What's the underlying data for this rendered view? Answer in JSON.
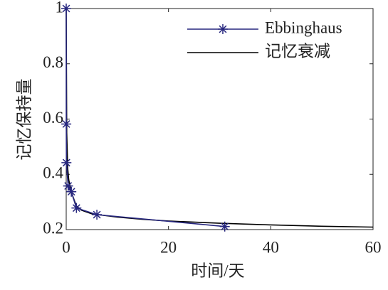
{
  "chart_data": {
    "type": "line",
    "xlabel": "时间/天",
    "ylabel": "记忆保持量",
    "xlim": [
      0,
      60
    ],
    "ylim": [
      0.2,
      1
    ],
    "xticks": [
      0,
      20,
      40,
      60
    ],
    "yticks": [
      0.2,
      0.4,
      0.6,
      0.8,
      1
    ],
    "grid": false,
    "legend": "upper right",
    "series": [
      {
        "name": "Ebbinghaus",
        "color": "#27277f",
        "marker": "asterisk",
        "x": [
          0,
          0.0139,
          0.0417,
          0.375,
          1,
          2,
          6,
          31
        ],
        "values": [
          1,
          0.582,
          0.442,
          0.358,
          0.337,
          0.278,
          0.254,
          0.211
        ]
      },
      {
        "name": "记忆衰减",
        "color": "#000000",
        "marker": "none",
        "x": [
          0,
          0.1,
          0.3,
          0.5,
          1,
          2,
          3,
          5,
          10,
          15,
          20,
          30,
          40,
          50,
          60
        ],
        "values": [
          1,
          0.55,
          0.42,
          0.38,
          0.335,
          0.285,
          0.27,
          0.257,
          0.245,
          0.237,
          0.231,
          0.223,
          0.217,
          0.212,
          0.209
        ]
      }
    ]
  }
}
